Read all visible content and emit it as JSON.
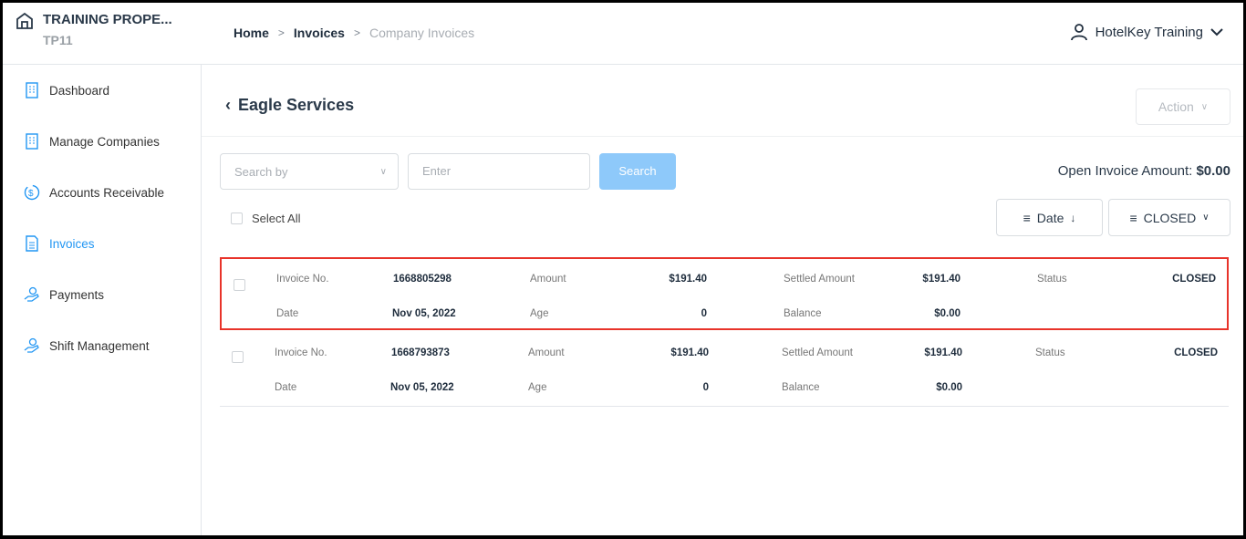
{
  "header": {
    "property_name": "TRAINING PROPE...",
    "property_code": "TP11",
    "breadcrumb": [
      "Home",
      "Invoices",
      "Company Invoices"
    ],
    "user": "HotelKey Training"
  },
  "sidebar": {
    "items": [
      {
        "label": "Dashboard",
        "icon": "building-icon"
      },
      {
        "label": "Manage Companies",
        "icon": "building-icon"
      },
      {
        "label": "Accounts Receivable",
        "icon": "dollar-cycle-icon"
      },
      {
        "label": "Invoices",
        "icon": "invoice-icon",
        "active": true
      },
      {
        "label": "Payments",
        "icon": "hand-coin-icon"
      },
      {
        "label": "Shift Management",
        "icon": "hand-coin-icon"
      }
    ]
  },
  "page": {
    "title": "Eagle Services",
    "action_label": "Action"
  },
  "search": {
    "search_by_placeholder": "Search by",
    "enter_placeholder": "Enter",
    "button": "Search"
  },
  "open_invoice": {
    "label": "Open Invoice Amount:",
    "value": "$0.00"
  },
  "select_all": "Select All",
  "sort": {
    "label": "Date"
  },
  "filter": {
    "label": "CLOSED"
  },
  "colors": {
    "accent": "#2196f3",
    "highlight": "#e8332a",
    "search_button": "#8ec9fa"
  },
  "labels": {
    "invoice_no": "Invoice No.",
    "amount": "Amount",
    "settled": "Settled Amount",
    "status": "Status",
    "date": "Date",
    "age": "Age",
    "balance": "Balance"
  },
  "invoices": [
    {
      "invoice_no": "1668805298",
      "amount": "$191.40",
      "settled": "$191.40",
      "status": "CLOSED",
      "date": "Nov 05, 2022",
      "age": "0",
      "balance": "$0.00"
    },
    {
      "invoice_no": "1668793873",
      "amount": "$191.40",
      "settled": "$191.40",
      "status": "CLOSED",
      "date": "Nov 05, 2022",
      "age": "0",
      "balance": "$0.00"
    }
  ]
}
